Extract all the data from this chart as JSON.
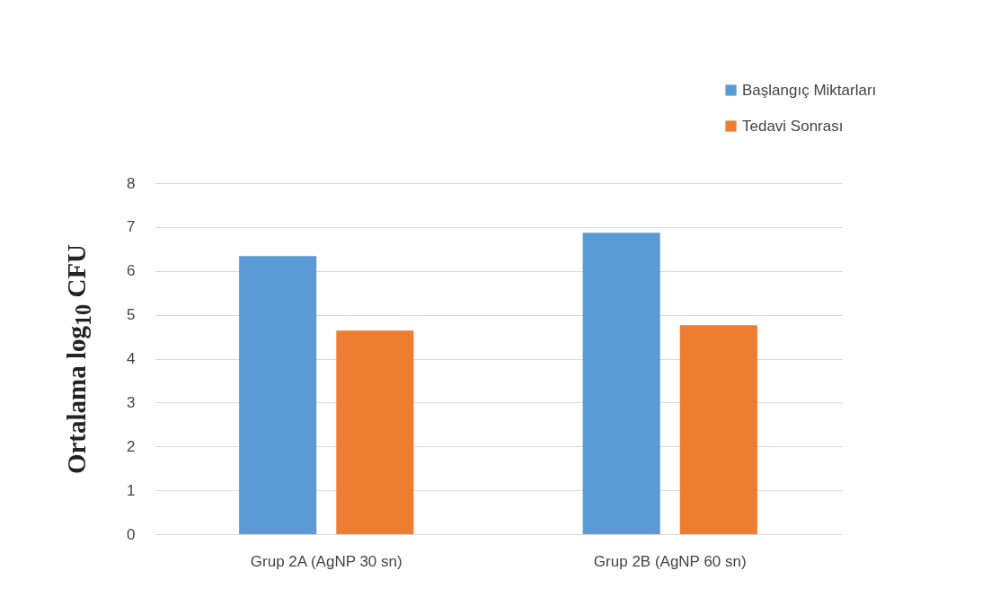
{
  "chart_data": {
    "type": "bar",
    "ylabel": "Ortalama log$_{10}$ CFU",
    "categories": [
      "Grup 2A (AgNP 30 sn)",
      "Grup 2B (AgNP 60 sn)"
    ],
    "series": [
      {
        "name": "Başlangıç Miktarları",
        "color": "#5b9bd5",
        "values": [
          6.34,
          6.87
        ]
      },
      {
        "name": "Tedavi Sonrası",
        "color": "#ed7d31",
        "values": [
          4.64,
          4.76
        ]
      }
    ],
    "ylim": [
      0,
      8
    ],
    "yticks": [
      0,
      1,
      2,
      3,
      4,
      5,
      6,
      7,
      8
    ],
    "grid": "y",
    "legend": "top right"
  }
}
